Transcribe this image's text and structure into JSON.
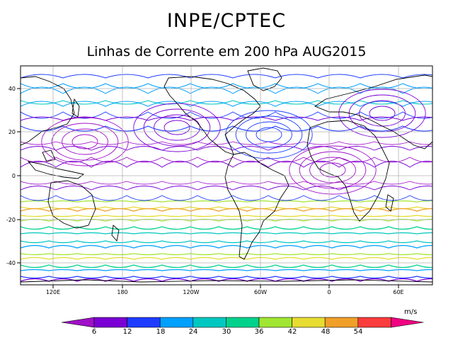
{
  "header": {
    "title": "INPE/CPTEC",
    "subtitle": "Linhas de Corrente em 200 hPa AUG2015"
  },
  "map": {
    "y_ticks": [
      "40",
      "20",
      "0",
      "-20",
      "-40"
    ],
    "x_ticks": [
      "120E",
      "180",
      "120W",
      "60W",
      "0",
      "60E"
    ],
    "grid": true,
    "land_color": "#ffffff",
    "coastline_color": "#000000"
  },
  "colorbar": {
    "unit": "m/s",
    "labels": [
      "6",
      "12",
      "18",
      "24",
      "30",
      "36",
      "42",
      "48",
      "54"
    ],
    "colors": [
      "#a010c8",
      "#7a00d4",
      "#1e3cff",
      "#00a0ff",
      "#00c8c0",
      "#00d28c",
      "#a0e632",
      "#e6dc32",
      "#f0a028",
      "#fa3c3c",
      "#f00082"
    ]
  }
}
